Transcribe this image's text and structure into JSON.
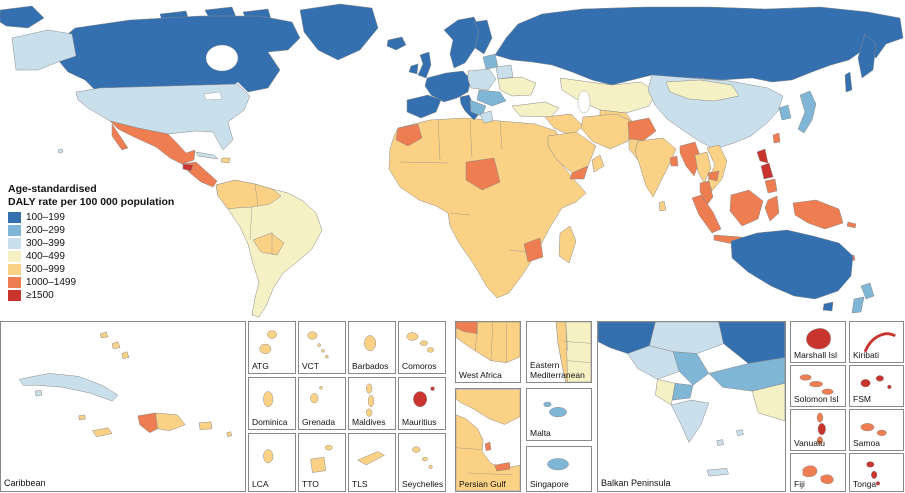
{
  "legend": {
    "title_lines": [
      "Age-standardised",
      "DALY rate per 100 000 population"
    ],
    "items": [
      {
        "label": "100–199",
        "color": "#3470af"
      },
      {
        "label": "200–299",
        "color": "#7fb5d5"
      },
      {
        "label": "300–399",
        "color": "#cadfec"
      },
      {
        "label": "400–499",
        "color": "#f6f1c4"
      },
      {
        "label": "500–999",
        "color": "#fbd285"
      },
      {
        "label": "1000–1499",
        "color": "#ee7d51"
      },
      {
        "label": "≥1500",
        "color": "#c9342f"
      }
    ]
  },
  "insets": {
    "caribbean": "Caribbean",
    "atg": "ATG",
    "vct": "VCT",
    "barbados": "Barbados",
    "comoros": "Comoros",
    "dominica": "Dominica",
    "grenada": "Grenada",
    "maldives": "Maldives",
    "mauritius": "Mauritius",
    "lca": "LCA",
    "tto": "TTO",
    "tls": "TLS",
    "seychelles": "Seychelles",
    "west_africa": "West Africa",
    "eastern_mediterranean": "Eastern Mediterranean",
    "persian_gulf": "Persian Gulf",
    "malta": "Malta",
    "singapore": "Singapore",
    "balkan": "Balkan Peninsula",
    "marshall": "Marshall Isl",
    "kiribati": "Kiribati",
    "solomon": "Solomon Isl",
    "fsm": "FSM",
    "vanuatu": "Vanuatu",
    "samoa": "Samoa",
    "fiji": "Fiji",
    "tonga": "Tonga"
  }
}
